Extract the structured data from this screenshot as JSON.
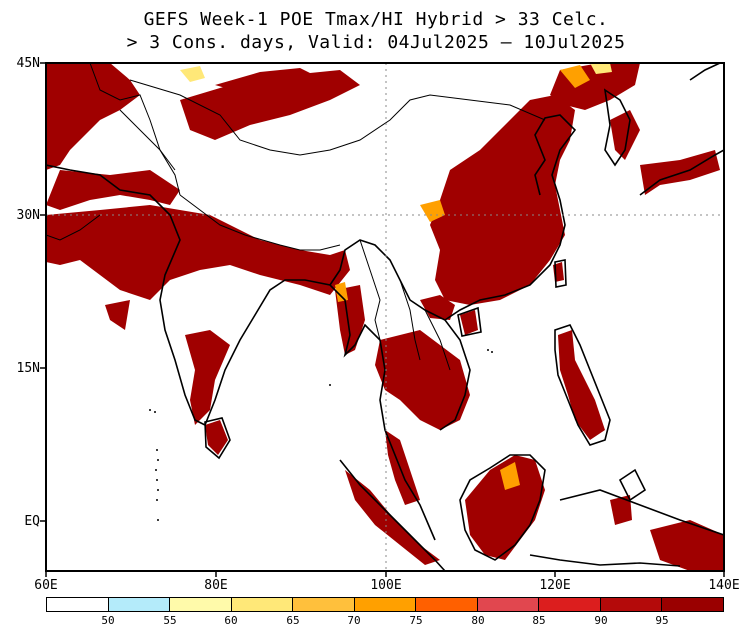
{
  "title": {
    "line1": "GEFS Week-1 POE Tmax/HI Hybrid > 33 Celc.",
    "line2": "> 3 Cons. days, Valid: 04Jul2025 – 10Jul2025"
  },
  "map": {
    "lon_range": [
      60,
      140
    ],
    "lat_range": [
      -5,
      45
    ],
    "lat_labels": [
      "45N",
      "30N",
      "15N",
      "EQ"
    ],
    "lon_labels": [
      "60E",
      "80E",
      "100E",
      "120E",
      "140E"
    ],
    "grid": "dotted at 20E / 15N"
  },
  "colorbar": {
    "labels": [
      "50",
      "55",
      "60",
      "65",
      "70",
      "75",
      "80",
      "85",
      "90",
      "95"
    ],
    "colors": [
      "#ffffff",
      "#b4ebfa",
      "#fffaaa",
      "#ffe878",
      "#ffc03c",
      "#ffa000",
      "#ff6000",
      "#e1474f",
      "#dc1e1e",
      "#b40a0a",
      "#9a0000"
    ]
  }
}
